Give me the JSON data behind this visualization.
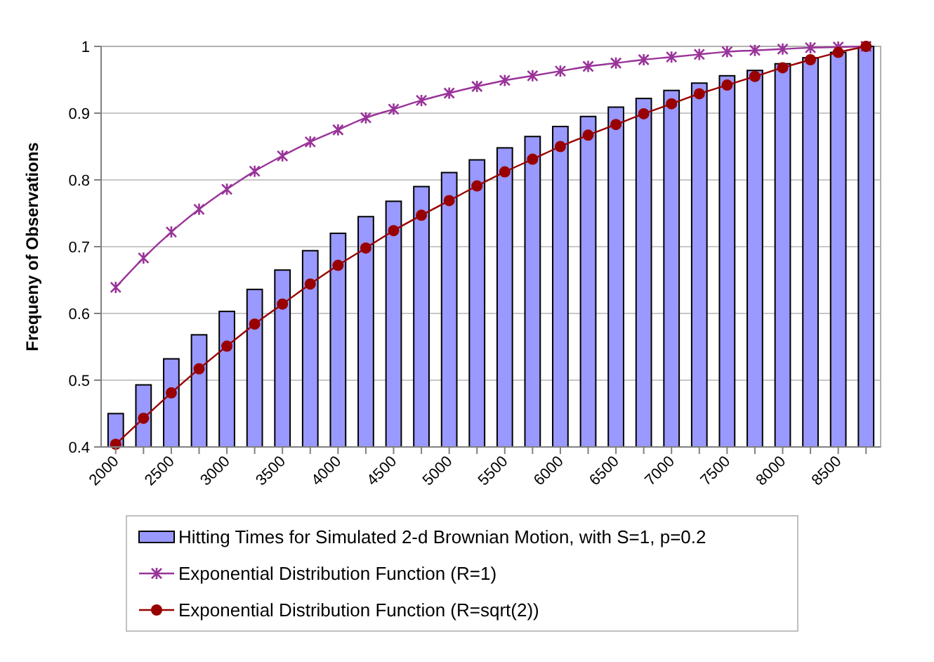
{
  "chart_data": {
    "type": "bar",
    "ylabel": "Frequeny of Observations",
    "categories": [
      "2000",
      null,
      "2500",
      null,
      "3000",
      null,
      "3500",
      null,
      "4000",
      null,
      "4500",
      null,
      "5000",
      null,
      "5500",
      null,
      "6000",
      null,
      "6500",
      null,
      "7000",
      null,
      "7500",
      null,
      "8000",
      null,
      "8500",
      null
    ],
    "series": [
      {
        "name": "Hitting Times for Simulated 2-d Brownian Motion, with S=1, p=0.2",
        "color": "#9999ff",
        "values": [
          0.45,
          0.493,
          0.532,
          0.568,
          0.603,
          0.636,
          0.665,
          0.694,
          0.72,
          0.745,
          0.768,
          0.79,
          0.811,
          0.83,
          0.848,
          0.865,
          0.88,
          0.895,
          0.909,
          0.922,
          0.934,
          0.945,
          0.956,
          0.964,
          0.974,
          0.983,
          0.991,
          1.0
        ]
      },
      {
        "name": "Exponential Distribution Function (R=1)",
        "type": "line",
        "marker": "cross",
        "color": "#993399",
        "values": [
          0.639,
          0.683,
          0.722,
          0.756,
          0.786,
          0.813,
          0.836,
          0.857,
          0.875,
          0.893,
          0.906,
          0.919,
          0.93,
          0.94,
          0.949,
          0.956,
          0.963,
          0.97,
          0.975,
          0.98,
          0.984,
          0.988,
          0.992,
          0.994,
          0.996,
          0.998,
          0.999,
          1.0
        ]
      },
      {
        "name": "Exponential Distribution Function (R=sqrt(2))",
        "type": "line",
        "marker": "circle",
        "color": "#990000",
        "values": [
          0.404,
          0.443,
          0.481,
          0.517,
          0.551,
          0.584,
          0.614,
          0.644,
          0.672,
          0.698,
          0.724,
          0.747,
          0.769,
          0.791,
          0.812,
          0.831,
          0.85,
          0.867,
          0.883,
          0.899,
          0.914,
          0.929,
          0.942,
          0.955,
          0.968,
          0.98,
          0.991,
          1.0
        ]
      }
    ],
    "ylim": [
      0.4,
      1
    ],
    "yticks": [
      0.4,
      0.5,
      0.6,
      0.7,
      0.8,
      0.9,
      1
    ],
    "grid": "y",
    "legend": "bottom"
  }
}
